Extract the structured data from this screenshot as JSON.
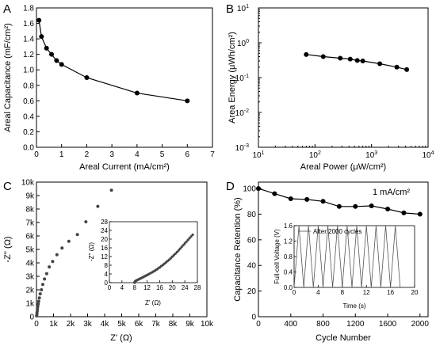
{
  "chart_data": [
    {
      "panel": "A",
      "type": "line",
      "xlabel_html": "Areal Current (mA/cm²)",
      "ylabel_html": "Areal Capacitance (mF/cm²)",
      "xlim": [
        0,
        7
      ],
      "ylim": [
        0,
        1.8
      ],
      "xticks": [
        "0",
        "1",
        "2",
        "3",
        "4",
        "5",
        "6",
        "7"
      ],
      "yticks": [
        "0.0",
        "0.2",
        "0.4",
        "0.6",
        "0.8",
        "1.0",
        "1.2",
        "1.4",
        "1.6",
        "1.8"
      ],
      "series": [
        {
          "x": [
            0.1,
            0.2,
            0.4,
            0.6,
            0.8,
            1.0,
            2.0,
            4.0,
            6.0
          ],
          "y": [
            1.64,
            1.43,
            1.28,
            1.2,
            1.12,
            1.07,
            0.9,
            0.7,
            0.6
          ]
        }
      ]
    },
    {
      "panel": "B",
      "type": "line",
      "xlabel_html": "Areal Power (μW/cm²)",
      "ylabel_html": "Area Energy (μWh/cm²)",
      "xscale": "log",
      "yscale": "log",
      "xlim": [
        10,
        10000
      ],
      "ylim": [
        0.001,
        10
      ],
      "series": [
        {
          "x": [
            70,
            140,
            280,
            420,
            560,
            700,
            1400,
            2800,
            4200
          ],
          "y": [
            0.46,
            0.4,
            0.36,
            0.34,
            0.31,
            0.3,
            0.25,
            0.2,
            0.17
          ]
        }
      ]
    },
    {
      "panel": "C",
      "type": "scatter",
      "xlabel": "Z' (Ω)",
      "ylabel": "-Z'' (Ω)",
      "xlim": [
        0,
        10000
      ],
      "ylim": [
        0,
        10000
      ],
      "xticks": [
        "0",
        "1k",
        "2k",
        "3k",
        "4k",
        "5k",
        "6k",
        "7k",
        "8k",
        "9k",
        "10k"
      ],
      "yticks": [
        "0",
        "1k",
        "2k",
        "3k",
        "4k",
        "5k",
        "6k",
        "7k",
        "8k",
        "9k",
        "10k"
      ],
      "points": [
        [
          10,
          60
        ],
        [
          20,
          150
        ],
        [
          30,
          280
        ],
        [
          45,
          420
        ],
        [
          60,
          600
        ],
        [
          80,
          780
        ],
        [
          100,
          950
        ],
        [
          130,
          1150
        ],
        [
          170,
          1400
        ],
        [
          220,
          1700
        ],
        [
          290,
          2000
        ],
        [
          370,
          2400
        ],
        [
          470,
          2800
        ],
        [
          600,
          3200
        ],
        [
          750,
          3700
        ],
        [
          950,
          4100
        ],
        [
          1200,
          4600
        ],
        [
          1500,
          5100
        ],
        [
          1900,
          5600
        ],
        [
          2400,
          6100
        ],
        [
          2900,
          7050
        ],
        [
          3600,
          8200
        ],
        [
          4400,
          9400
        ]
      ],
      "inset": {
        "xlim": [
          0,
          28
        ],
        "ylim": [
          0,
          28
        ],
        "xticks": [
          "0",
          "4",
          "8",
          "12",
          "16",
          "20",
          "24",
          "28"
        ],
        "yticks": [
          "0",
          "4",
          "8",
          "12",
          "16",
          "20",
          "24",
          "28"
        ],
        "xlabel": "Z' (Ω)",
        "ylabel": "-Z'' (Ω)",
        "points": [
          [
            8.0,
            0.0
          ],
          [
            8.0,
            0.05
          ],
          [
            8.05,
            0.15
          ],
          [
            8.1,
            0.3
          ],
          [
            8.2,
            0.5
          ],
          [
            8.3,
            0.7
          ],
          [
            8.5,
            0.9
          ],
          [
            8.7,
            1.1
          ],
          [
            9.0,
            1.3
          ],
          [
            9.3,
            1.5
          ],
          [
            9.6,
            1.75
          ],
          [
            10.0,
            2.0
          ],
          [
            10.4,
            2.3
          ],
          [
            10.8,
            2.6
          ],
          [
            11.2,
            2.9
          ],
          [
            11.6,
            3.2
          ],
          [
            12.0,
            3.5
          ],
          [
            12.5,
            3.9
          ],
          [
            13.0,
            4.3
          ],
          [
            13.5,
            4.7
          ],
          [
            14.0,
            5.1
          ],
          [
            14.5,
            5.5
          ],
          [
            15.0,
            6.0
          ],
          [
            15.5,
            6.5
          ],
          [
            16.0,
            7.0
          ],
          [
            16.5,
            7.6
          ],
          [
            17.0,
            8.1
          ],
          [
            17.5,
            8.7
          ],
          [
            18.0,
            9.3
          ],
          [
            18.5,
            9.9
          ],
          [
            19.0,
            10.5
          ],
          [
            19.5,
            11.2
          ],
          [
            20.0,
            11.9
          ],
          [
            20.5,
            12.6
          ],
          [
            21.0,
            13.3
          ],
          [
            21.5,
            14.0
          ],
          [
            22.0,
            14.8
          ],
          [
            22.5,
            15.6
          ],
          [
            23.0,
            16.4
          ],
          [
            23.5,
            17.2
          ],
          [
            24.0,
            18.0
          ],
          [
            24.5,
            18.8
          ],
          [
            25.0,
            19.6
          ],
          [
            25.5,
            20.4
          ],
          [
            26.0,
            21.2
          ],
          [
            26.5,
            22.0
          ]
        ]
      }
    },
    {
      "panel": "D",
      "type": "line",
      "xlabel": "Cycle Number",
      "ylabel": "Capacitance Retention (%)",
      "annotation_html": "1 mA/cm²",
      "xlim": [
        0,
        2100
      ],
      "ylim": [
        0,
        105
      ],
      "xticks": [
        "0",
        "400",
        "800",
        "1200",
        "1600",
        "2000"
      ],
      "yticks": [
        "0",
        "20",
        "40",
        "60",
        "80",
        "100"
      ],
      "series": [
        {
          "x": [
            0,
            200,
            400,
            600,
            800,
            1000,
            1200,
            1400,
            1600,
            1800,
            2000
          ],
          "y": [
            100,
            96,
            92,
            91.5,
            90,
            86,
            86,
            86.5,
            84,
            81,
            80
          ]
        }
      ],
      "inset": {
        "xlim": [
          0,
          20
        ],
        "ylim": [
          0,
          1.6
        ],
        "xticks": [
          "0",
          "4",
          "8",
          "12",
          "16",
          "20"
        ],
        "yticks": [
          "0.0",
          "0.4",
          "0.8",
          "1.2",
          "1.6"
        ],
        "xlabel": "Time (s)",
        "ylabel": "Full-cell Voltage (V)",
        "legend": "After 2000 cycles",
        "n_cycles": 11,
        "period_s": 1.6,
        "vmax": 1.6
      }
    }
  ]
}
